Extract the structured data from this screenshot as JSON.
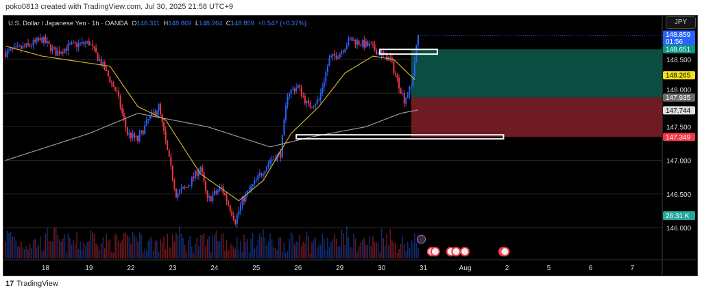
{
  "credit": "poko0813 created with TradingView.com, Jul 30, 2025 21:58 UTC+9",
  "legend": {
    "symbol": "U.S. Dollar / Japanese Yen · 1h · OANDA",
    "o_label": "O",
    "o": "148.311",
    "h_label": "H",
    "h": "148.869",
    "l_label": "L",
    "l": "148.264",
    "c_label": "C",
    "c": "148.859",
    "change": "+0.547 (+0.37%)"
  },
  "currency_button": "JPY",
  "footer": "TradingView",
  "colors": {
    "up": "#2962ff",
    "down": "#f23645",
    "sma_fast": "#d4b02a",
    "sma_slow": "#9a9a9a",
    "target": "#0b4d40",
    "stop": "#6e1b23"
  },
  "chart_data": {
    "type": "candlestick",
    "ylim": [
      145.75,
      149.05
    ],
    "y_ticks": [
      "146.000",
      "146.500",
      "147.000",
      "147.500",
      "148.000",
      "148.500"
    ],
    "y_tick_values": [
      146.0,
      146.5,
      147.0,
      147.5,
      148.0,
      148.5
    ],
    "x_ticks": [
      "18",
      "19",
      "22",
      "23",
      "24",
      "25",
      "26",
      "29",
      "30",
      "31",
      "Aug",
      "2",
      "5",
      "6",
      "7"
    ],
    "x_tick_hours": [
      23,
      48,
      72,
      96,
      120,
      144,
      168,
      192,
      216,
      240,
      264,
      288,
      312,
      336,
      360
    ],
    "close_keypoints": [
      [
        0,
        148.6
      ],
      [
        13,
        148.7
      ],
      [
        21,
        148.8
      ],
      [
        29,
        148.6
      ],
      [
        37,
        148.7
      ],
      [
        48,
        148.75
      ],
      [
        56,
        148.4
      ],
      [
        64,
        148.0
      ],
      [
        70,
        147.4
      ],
      [
        76,
        147.3
      ],
      [
        82,
        147.6
      ],
      [
        88,
        147.8
      ],
      [
        94,
        147.0
      ],
      [
        98,
        146.5
      ],
      [
        104,
        146.6
      ],
      [
        112,
        146.9
      ],
      [
        116,
        146.4
      ],
      [
        124,
        146.6
      ],
      [
        132,
        146.1
      ],
      [
        136,
        146.4
      ],
      [
        144,
        146.7
      ],
      [
        152,
        147.0
      ],
      [
        158,
        147.1
      ],
      [
        162,
        148.0
      ],
      [
        168,
        148.1
      ],
      [
        174,
        147.8
      ],
      [
        180,
        147.9
      ],
      [
        186,
        148.5
      ],
      [
        192,
        148.6
      ],
      [
        198,
        148.8
      ],
      [
        203,
        148.75
      ],
      [
        209,
        148.7
      ],
      [
        215,
        148.6
      ],
      [
        221,
        148.5
      ],
      [
        225,
        148.2
      ],
      [
        229,
        147.9
      ],
      [
        233,
        148.1
      ],
      [
        237,
        148.86
      ]
    ],
    "sma_fast": [
      [
        0,
        148.7
      ],
      [
        21,
        148.55
      ],
      [
        60,
        148.4
      ],
      [
        76,
        147.8
      ],
      [
        92,
        147.6
      ],
      [
        112,
        146.8
      ],
      [
        134,
        146.4
      ],
      [
        148,
        146.7
      ],
      [
        164,
        147.4
      ],
      [
        180,
        147.8
      ],
      [
        195,
        148.3
      ],
      [
        211,
        148.55
      ],
      [
        223,
        148.5
      ],
      [
        235,
        148.2
      ]
    ],
    "sma_slow": [
      [
        0,
        147.0
      ],
      [
        48,
        147.4
      ],
      [
        76,
        147.7
      ],
      [
        116,
        147.5
      ],
      [
        152,
        147.2
      ],
      [
        176,
        147.35
      ],
      [
        207,
        147.5
      ],
      [
        227,
        147.7
      ],
      [
        237,
        147.75
      ]
    ],
    "position": {
      "entry": 147.935,
      "target": 148.651,
      "stop": 147.349,
      "start_hour": 233
    },
    "zones": [
      {
        "from_hour": 215,
        "to_hour": 248,
        "low": 148.58,
        "high": 148.65
      },
      {
        "from_hour": 167,
        "to_hour": 286,
        "low": 147.32,
        "high": 147.38
      }
    ],
    "price_labels": [
      {
        "text": "148.859",
        "sub": "01:56",
        "value": 148.859,
        "bg": "#2962ff",
        "fg": "#ffffff"
      },
      {
        "text": "148.651",
        "value": 148.651,
        "bg": "#089981",
        "fg": "#ffffff"
      },
      {
        "text": "148.265",
        "value": 148.265,
        "bg": "#f5e11b",
        "fg": "#000000"
      },
      {
        "text": "147.935",
        "value": 147.935,
        "bg": "#6b6b6b",
        "fg": "#ffffff"
      },
      {
        "text": "147.744",
        "value": 147.744,
        "bg": "#dddddd",
        "fg": "#000000"
      },
      {
        "text": "147.349",
        "value": 147.349,
        "bg": "#f23645",
        "fg": "#ffffff"
      }
    ],
    "volume_label": "26.31 K"
  }
}
